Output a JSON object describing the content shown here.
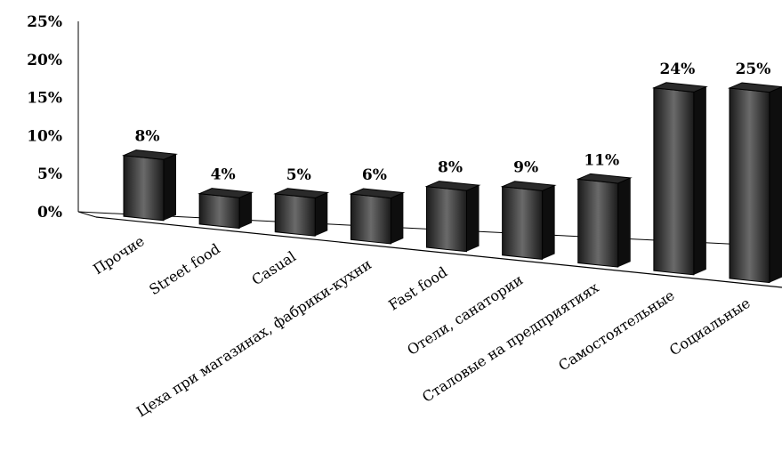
{
  "chart_data": {
    "type": "bar",
    "title": "",
    "xlabel": "",
    "ylabel": "",
    "ylim": [
      0,
      25
    ],
    "yticks": [
      "0%",
      "5%",
      "10%",
      "15%",
      "20%",
      "25%"
    ],
    "grid": false,
    "legend": "none",
    "categories": [
      "Прочие",
      "Street food",
      "Casual",
      "Цеха при магазинах, фабрики-кухни",
      "Fast food",
      "Отели, санатории",
      "Сталовые на предприятиях",
      "Самостоятельные",
      "Социальные"
    ],
    "values": [
      8,
      4,
      5,
      6,
      8,
      9,
      11,
      24,
      25
    ],
    "data_labels": [
      "8%",
      "4%",
      "5%",
      "6%",
      "8%",
      "9%",
      "11%",
      "24%",
      "25%"
    ],
    "bar_color": "#3c3c3c"
  }
}
